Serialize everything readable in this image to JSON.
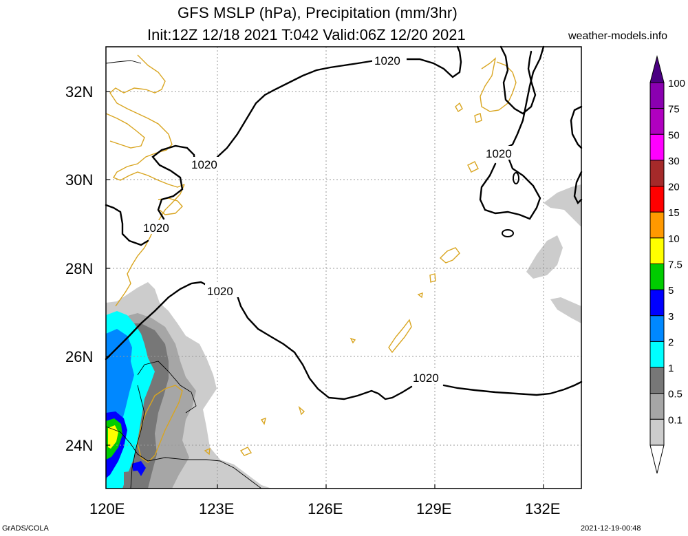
{
  "title": {
    "line1": "GFS MSLP (hPa), Precipitation (mm/3hr)",
    "line2": "Init:12Z 12/18 2021 T:042 Valid:06Z 12/20 2021"
  },
  "site_label": "weather-models.info",
  "footer": {
    "software": "GrADS/COLA",
    "timestamp": "2021-12-19-00:48"
  },
  "map": {
    "lon_range": [
      120,
      133
    ],
    "lat_range": [
      23,
      33
    ],
    "lon_ticks": [
      {
        "value": 120,
        "label": "120E"
      },
      {
        "value": 123,
        "label": "123E"
      },
      {
        "value": 126,
        "label": "126E"
      },
      {
        "value": 129,
        "label": "129E"
      },
      {
        "value": 132,
        "label": "132E"
      }
    ],
    "lat_ticks": [
      {
        "value": 24,
        "label": "24N"
      },
      {
        "value": 26,
        "label": "26N"
      },
      {
        "value": 28,
        "label": "28N"
      },
      {
        "value": 30,
        "label": "30N"
      },
      {
        "value": 32,
        "label": "32N"
      }
    ],
    "isobar_labels": [
      "1020",
      "1020",
      "1020",
      "1020",
      "1020",
      "1020"
    ],
    "coastline_color": "#d9a520",
    "isobar_color": "#000000"
  },
  "colorbar": {
    "entries": [
      {
        "label": "100",
        "color": "#8a00b0"
      },
      {
        "label": "75",
        "color": "#b000c0"
      },
      {
        "label": "50",
        "color": "#ff00ff"
      },
      {
        "label": "30",
        "color": "#a52a2a"
      },
      {
        "label": "20",
        "color": "#ff0000"
      },
      {
        "label": "15",
        "color": "#ff9900"
      },
      {
        "label": "10",
        "color": "#ffff00"
      },
      {
        "label": "7.5",
        "color": "#00cc00"
      },
      {
        "label": "5",
        "color": "#0000ff"
      },
      {
        "label": "3",
        "color": "#0088ff"
      },
      {
        "label": "2",
        "color": "#00ffff"
      },
      {
        "label": "1",
        "color": "#777777"
      },
      {
        "label": "0.5",
        "color": "#a6a6a6"
      },
      {
        "label": "0.1",
        "color": "#cccccc"
      }
    ],
    "top_cap_color": "#4b0082",
    "bottom_cap_color": "#ffffff"
  }
}
